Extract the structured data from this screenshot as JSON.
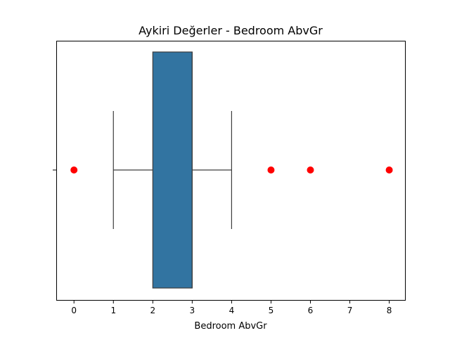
{
  "chart_data": {
    "type": "boxplot",
    "title": "Aykiri Değerler - Bedroom AbvGr",
    "xlabel": "Bedroom AbvGr",
    "ylabel": "",
    "orientation": "horizontal",
    "xlim": [
      -0.45,
      8.4
    ],
    "xticks": [
      0,
      1,
      2,
      3,
      4,
      5,
      6,
      7,
      8
    ],
    "xtick_labels": [
      "0",
      "1",
      "2",
      "3",
      "4",
      "5",
      "6",
      "7",
      "8"
    ],
    "grid": false,
    "legend": "none",
    "box": {
      "q1": 2,
      "median": 3,
      "q3": 3,
      "whisker_low": 1,
      "whisker_high": 4
    },
    "outliers": [
      0,
      5,
      6,
      8
    ],
    "colors": {
      "box_fill": "#3274a1",
      "box_edge": "#3d3d3d",
      "whisker": "#3d3d3d",
      "outlier": "#ff0000",
      "axes": "#000000"
    }
  }
}
